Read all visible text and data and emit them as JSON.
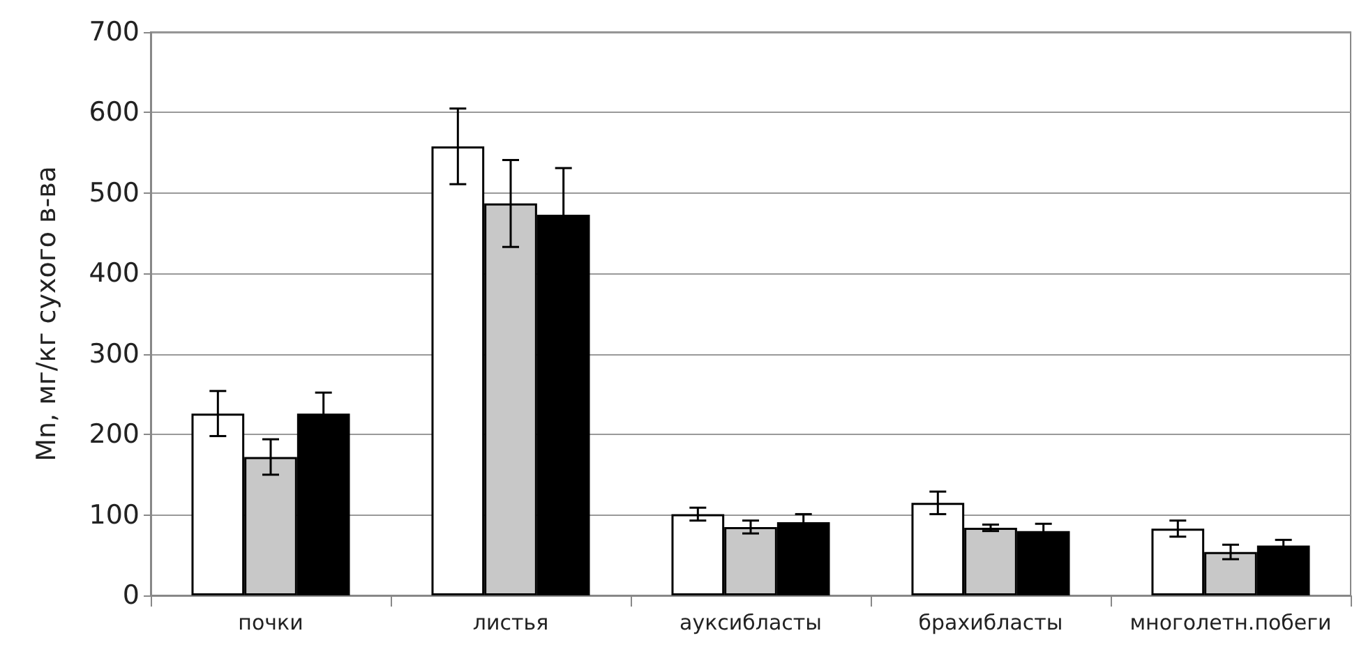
{
  "chart_data": {
    "type": "bar",
    "ylabel": "Mn, мг/кг сухого в-ва",
    "categories": [
      "почки",
      "листья",
      "ауксибласты",
      "брахибласты",
      "многолетн.побеги"
    ],
    "series": [
      {
        "color": "#ffffff",
        "values": [
          226,
          558,
          101,
          115,
          83
        ],
        "errors": [
          28,
          47,
          8,
          14,
          10
        ]
      },
      {
        "color": "#c8c8c8",
        "values": [
          172,
          487,
          85,
          84,
          54
        ],
        "errors": [
          22,
          54,
          8,
          4,
          9
        ]
      },
      {
        "color": "#000000",
        "values": [
          226,
          473,
          91,
          80,
          62
        ],
        "errors": [
          26,
          58,
          10,
          9,
          7
        ]
      }
    ],
    "ylim": [
      0,
      700
    ],
    "yticks": [
      0,
      100,
      200,
      300,
      400,
      500,
      600,
      700
    ],
    "grid": "y"
  }
}
